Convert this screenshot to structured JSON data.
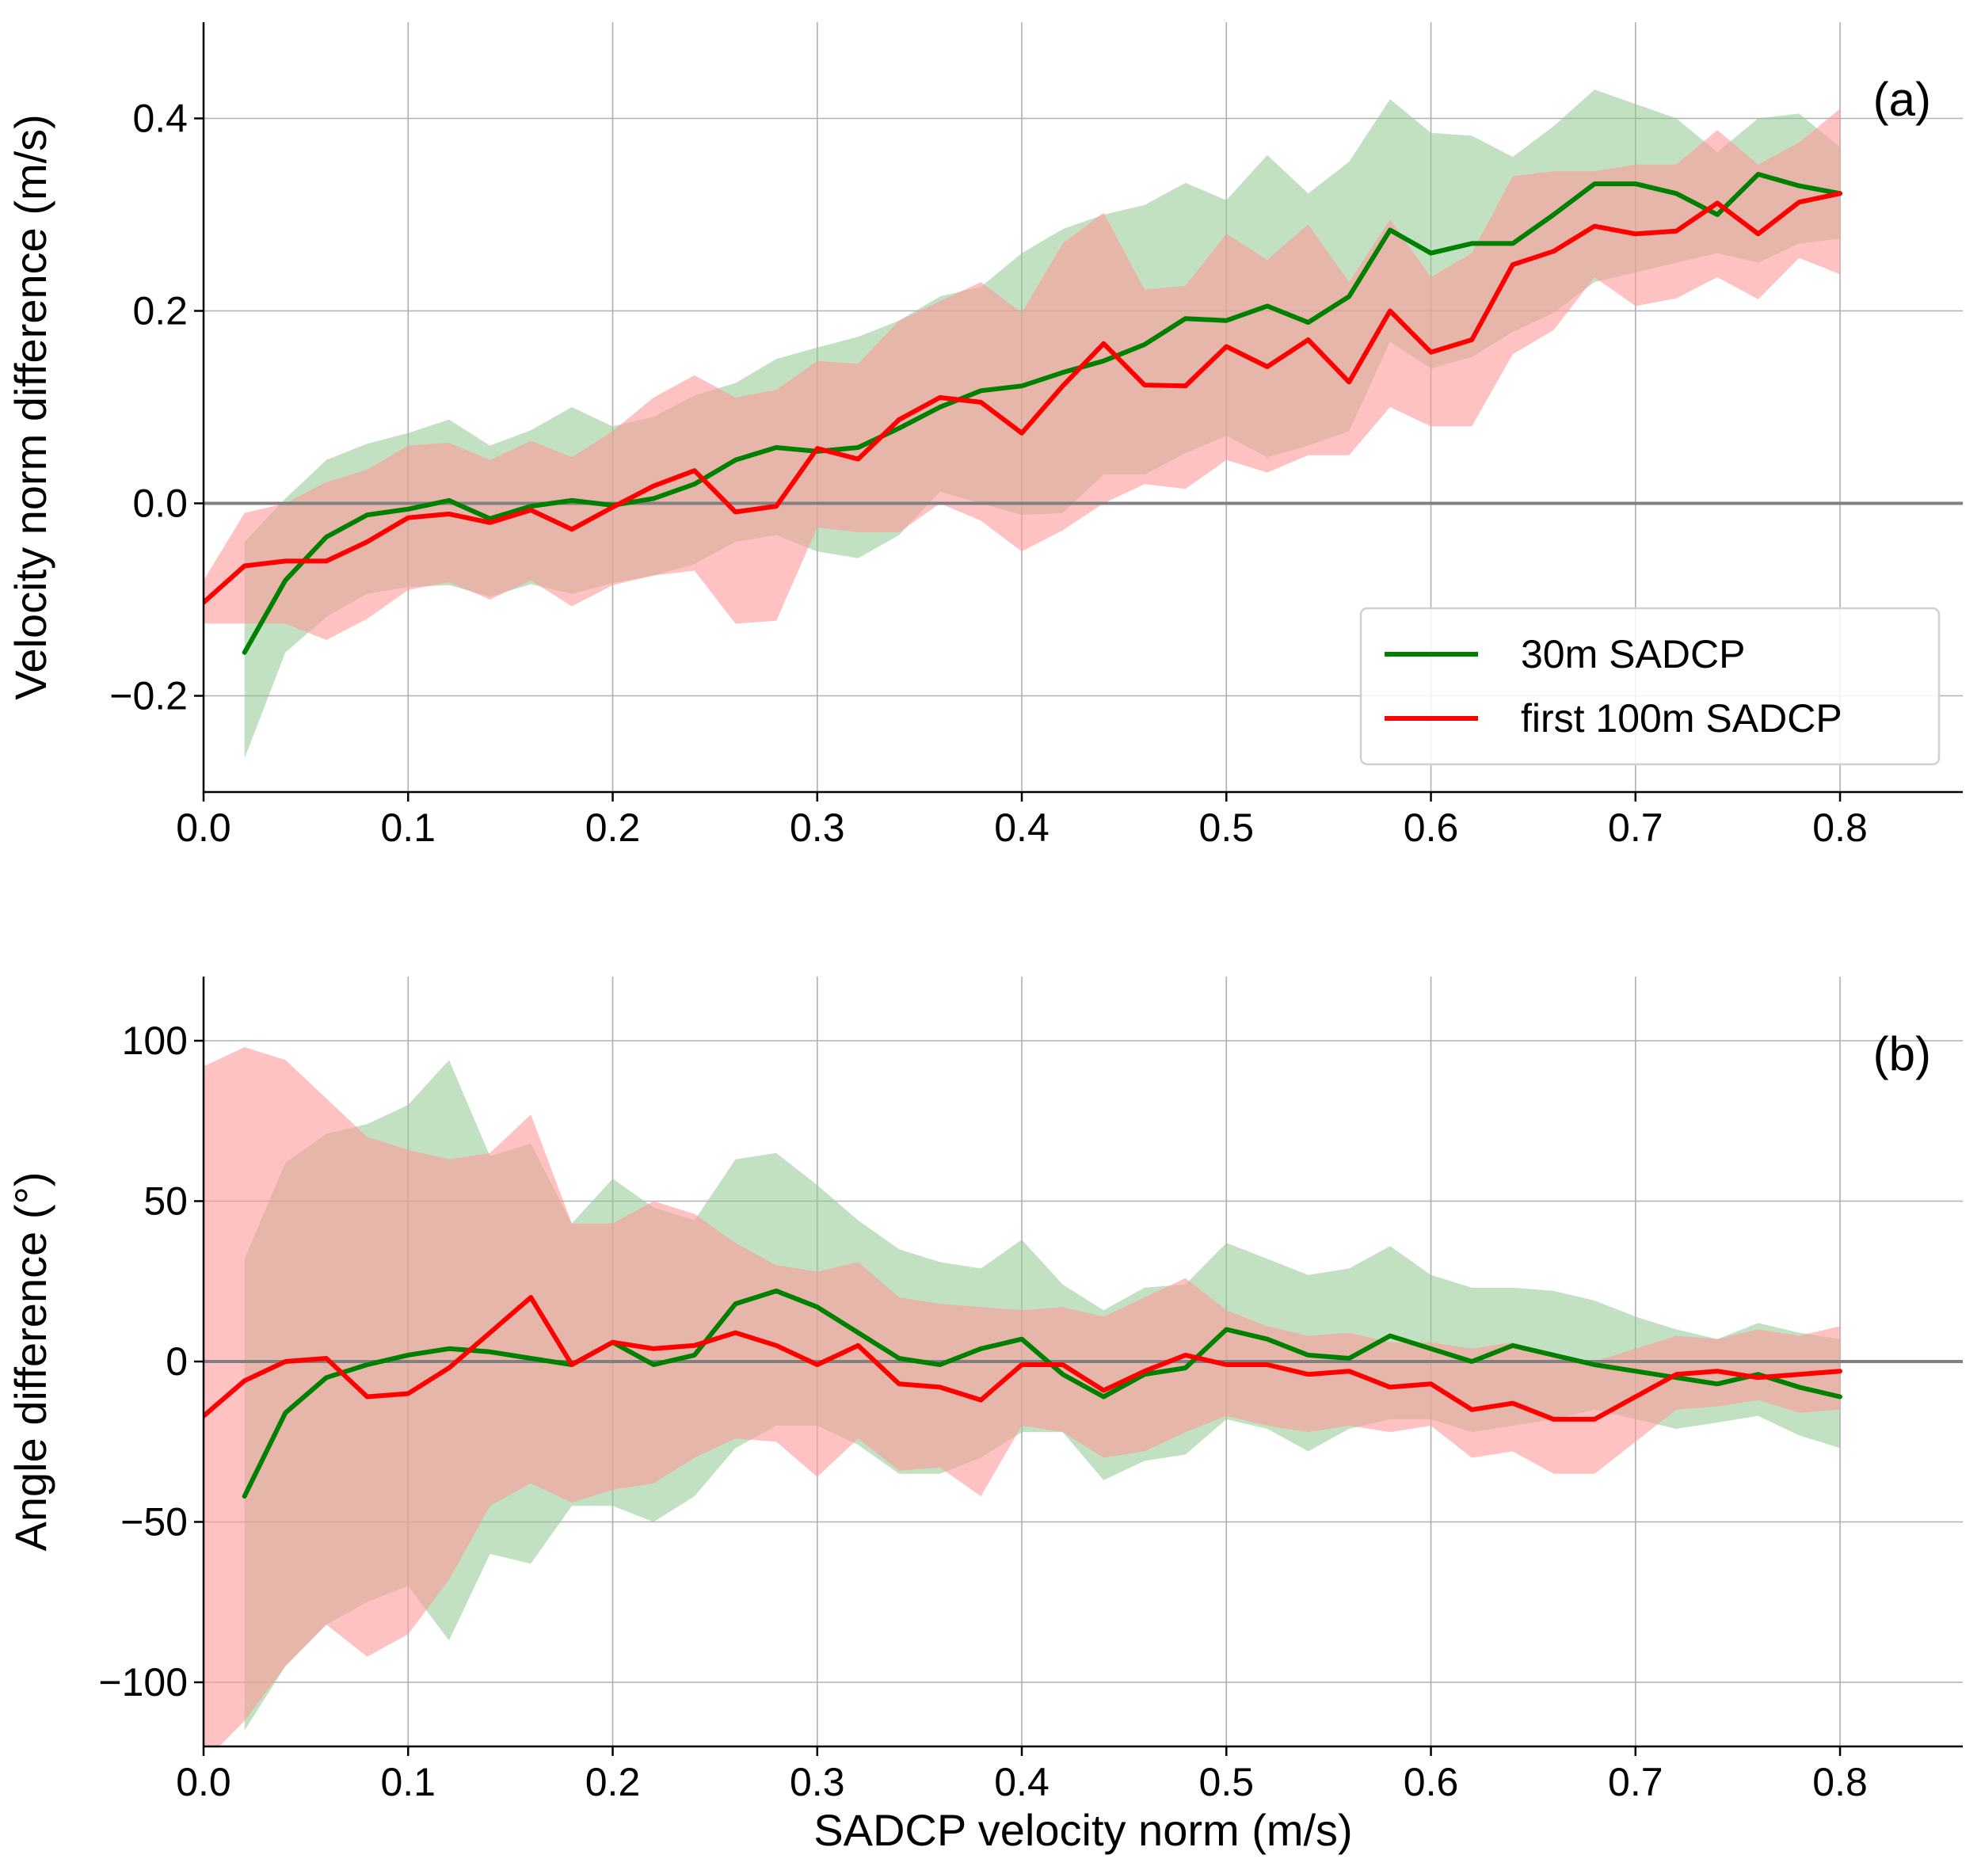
{
  "legend": {
    "series_a": "30m SADCP",
    "series_b": "first 100m SADCP"
  },
  "colors": {
    "series_a_line": "#008000",
    "series_a_band": "#90c990",
    "series_b_line": "#ff0000",
    "series_b_band": "#ff9a9a"
  },
  "chart_data": [
    {
      "type": "line",
      "panel_label": "(a)",
      "xlabel": "",
      "ylabel": "Velocity norm difference (m/s)",
      "xlim": [
        0,
        0.86
      ],
      "ylim": [
        -0.3,
        0.5
      ],
      "xticks": [
        0.0,
        0.1,
        0.2,
        0.3,
        0.4,
        0.5,
        0.6,
        0.7,
        0.8
      ],
      "xtick_labels": [
        "0.0",
        "0.1",
        "0.2",
        "0.3",
        "0.4",
        "0.5",
        "0.6",
        "0.7",
        "0.8"
      ],
      "yticks": [
        -0.2,
        0.0,
        0.2,
        0.4
      ],
      "ytick_labels": [
        "−0.2",
        "0.0",
        "0.2",
        "0.4"
      ],
      "grid": true,
      "reference_line": 0,
      "legend_position": "lower-right",
      "series": [
        {
          "name": "30m SADCP",
          "x": [
            0.02,
            0.04,
            0.06,
            0.08,
            0.1,
            0.12,
            0.14,
            0.16,
            0.18,
            0.2,
            0.22,
            0.24,
            0.26,
            0.28,
            0.3,
            0.32,
            0.34,
            0.36,
            0.38,
            0.4,
            0.42,
            0.44,
            0.46,
            0.48,
            0.5,
            0.52,
            0.54,
            0.56,
            0.58,
            0.6,
            0.62,
            0.64,
            0.66,
            0.68,
            0.7,
            0.72,
            0.74,
            0.76,
            0.78,
            0.8
          ],
          "values": [
            -0.155,
            -0.08,
            -0.035,
            -0.012,
            -0.006,
            0.003,
            -0.016,
            -0.003,
            0.003,
            -0.002,
            0.005,
            0.02,
            0.045,
            0.058,
            0.054,
            0.058,
            0.078,
            0.1,
            0.117,
            0.122,
            0.136,
            0.148,
            0.165,
            0.192,
            0.19,
            0.205,
            0.188,
            0.215,
            0.284,
            0.26,
            0.27,
            0.27,
            0.3,
            0.332,
            0.332,
            0.322,
            0.3,
            0.342,
            0.33,
            0.322
          ],
          "lower": [
            -0.265,
            -0.155,
            -0.118,
            -0.094,
            -0.087,
            -0.085,
            -0.097,
            -0.084,
            -0.094,
            -0.083,
            -0.075,
            -0.063,
            -0.04,
            -0.033,
            -0.05,
            -0.057,
            -0.033,
            0.012,
            0.0,
            -0.012,
            -0.01,
            0.03,
            0.03,
            0.052,
            0.07,
            0.048,
            0.06,
            0.075,
            0.168,
            0.14,
            0.152,
            0.178,
            0.198,
            0.23,
            0.24,
            0.25,
            0.26,
            0.25,
            0.27,
            0.275
          ],
          "upper": [
            -0.04,
            0.005,
            0.045,
            0.062,
            0.073,
            0.087,
            0.06,
            0.076,
            0.1,
            0.08,
            0.09,
            0.112,
            0.125,
            0.15,
            0.162,
            0.173,
            0.19,
            0.215,
            0.225,
            0.26,
            0.285,
            0.3,
            0.31,
            0.333,
            0.315,
            0.362,
            0.322,
            0.355,
            0.42,
            0.385,
            0.382,
            0.36,
            0.392,
            0.43,
            0.415,
            0.4,
            0.365,
            0.4,
            0.405,
            0.37
          ]
        },
        {
          "name": "first 100m SADCP",
          "x": [
            0.0,
            0.02,
            0.04,
            0.06,
            0.08,
            0.1,
            0.12,
            0.14,
            0.16,
            0.18,
            0.2,
            0.22,
            0.24,
            0.26,
            0.28,
            0.3,
            0.32,
            0.34,
            0.36,
            0.38,
            0.4,
            0.42,
            0.44,
            0.46,
            0.48,
            0.5,
            0.52,
            0.54,
            0.56,
            0.58,
            0.6,
            0.62,
            0.64,
            0.66,
            0.68,
            0.7,
            0.72,
            0.74,
            0.76,
            0.78,
            0.8
          ],
          "values": [
            -0.103,
            -0.065,
            -0.06,
            -0.06,
            -0.04,
            -0.015,
            -0.011,
            -0.02,
            -0.007,
            -0.027,
            -0.004,
            0.018,
            0.034,
            -0.009,
            -0.003,
            0.057,
            0.046,
            0.087,
            0.11,
            0.105,
            0.073,
            0.122,
            0.166,
            0.123,
            0.122,
            0.163,
            0.142,
            0.17,
            0.126,
            0.2,
            0.157,
            0.17,
            0.248,
            0.262,
            0.288,
            0.28,
            0.283,
            0.312,
            0.28,
            0.313,
            0.322
          ],
          "lower": [
            -0.125,
            -0.125,
            -0.125,
            -0.142,
            -0.12,
            -0.09,
            -0.082,
            -0.1,
            -0.08,
            -0.107,
            -0.085,
            -0.075,
            -0.07,
            -0.125,
            -0.122,
            -0.025,
            -0.03,
            -0.03,
            0.0,
            -0.018,
            -0.05,
            -0.028,
            0.0,
            0.02,
            0.015,
            0.045,
            0.032,
            0.05,
            0.05,
            0.1,
            0.08,
            0.08,
            0.155,
            0.18,
            0.235,
            0.205,
            0.213,
            0.235,
            0.212,
            0.255,
            0.238
          ],
          "upper": [
            -0.08,
            -0.01,
            0.0,
            0.022,
            0.035,
            0.06,
            0.063,
            0.045,
            0.065,
            0.048,
            0.075,
            0.11,
            0.133,
            0.11,
            0.118,
            0.148,
            0.145,
            0.19,
            0.21,
            0.23,
            0.198,
            0.27,
            0.302,
            0.222,
            0.226,
            0.28,
            0.253,
            0.29,
            0.23,
            0.295,
            0.235,
            0.26,
            0.34,
            0.345,
            0.345,
            0.352,
            0.352,
            0.388,
            0.352,
            0.375,
            0.41
          ]
        }
      ]
    },
    {
      "type": "line",
      "panel_label": "(b)",
      "xlabel": "SADCP velocity norm (m/s)",
      "ylabel": "Angle difference (°)",
      "xlim": [
        0,
        0.86
      ],
      "ylim": [
        -120,
        120
      ],
      "xticks": [
        0.0,
        0.1,
        0.2,
        0.3,
        0.4,
        0.5,
        0.6,
        0.7,
        0.8
      ],
      "xtick_labels": [
        "0.0",
        "0.1",
        "0.2",
        "0.3",
        "0.4",
        "0.5",
        "0.6",
        "0.7",
        "0.8"
      ],
      "yticks": [
        -100,
        -50,
        0,
        50,
        100
      ],
      "ytick_labels": [
        "−100",
        "−50",
        "0",
        "50",
        "100"
      ],
      "grid": true,
      "reference_line": 0,
      "series": [
        {
          "name": "30m SADCP",
          "x": [
            0.02,
            0.04,
            0.06,
            0.08,
            0.1,
            0.12,
            0.14,
            0.16,
            0.18,
            0.2,
            0.22,
            0.24,
            0.26,
            0.28,
            0.3,
            0.32,
            0.34,
            0.36,
            0.38,
            0.4,
            0.42,
            0.44,
            0.46,
            0.48,
            0.5,
            0.52,
            0.54,
            0.56,
            0.58,
            0.6,
            0.62,
            0.64,
            0.66,
            0.68,
            0.7,
            0.72,
            0.74,
            0.76,
            0.78,
            0.8
          ],
          "values": [
            -42,
            -16,
            -5,
            -1,
            2,
            4,
            3,
            1,
            -1,
            6,
            -1,
            2,
            18,
            22,
            17,
            9,
            1,
            -1,
            4,
            7,
            -4,
            -11,
            -4,
            -2,
            10,
            7,
            2,
            1,
            8,
            4,
            0,
            5,
            2,
            -1,
            -3,
            -5,
            -7,
            -4,
            -8,
            -11
          ],
          "lower": [
            -115,
            -95,
            -82,
            -75,
            -70,
            -87,
            -60,
            -63,
            -45,
            -45,
            -50,
            -42,
            -27,
            -20,
            -20,
            -26,
            -35,
            -35,
            -30,
            -22,
            -22,
            -37,
            -31,
            -29,
            -18,
            -21,
            -28,
            -21,
            -18,
            -18,
            -22,
            -20,
            -18,
            -15,
            -18,
            -21,
            -19,
            -17,
            -23,
            -27
          ],
          "upper": [
            32,
            62,
            71,
            74,
            80,
            94,
            64,
            68,
            43,
            57,
            48,
            44,
            63,
            65,
            55,
            44,
            35,
            31,
            29,
            38,
            24,
            16,
            23,
            24,
            37,
            32,
            27,
            29,
            36,
            27,
            23,
            23,
            22,
            19,
            14,
            10,
            7,
            12,
            9,
            7
          ]
        },
        {
          "name": "first 100m SADCP",
          "x": [
            0.0,
            0.02,
            0.04,
            0.06,
            0.08,
            0.1,
            0.12,
            0.14,
            0.16,
            0.18,
            0.2,
            0.22,
            0.24,
            0.26,
            0.28,
            0.3,
            0.32,
            0.34,
            0.36,
            0.38,
            0.4,
            0.42,
            0.44,
            0.46,
            0.48,
            0.5,
            0.52,
            0.54,
            0.56,
            0.58,
            0.6,
            0.62,
            0.64,
            0.66,
            0.68,
            0.7,
            0.72,
            0.74,
            0.76,
            0.78,
            0.8
          ],
          "values": [
            -17,
            -6,
            0,
            1,
            -11,
            -10,
            -2,
            9,
            20,
            -1,
            6,
            4,
            5,
            9,
            5,
            -1,
            5,
            -7,
            -8,
            -12,
            -1,
            -1,
            -9,
            -3,
            2,
            -1,
            -1,
            -4,
            -3,
            -8,
            -7,
            -15,
            -13,
            -18,
            -18,
            -11,
            -4,
            -3,
            -5,
            -4,
            -3
          ],
          "lower": [
            -125,
            -112,
            -95,
            -82,
            -92,
            -85,
            -68,
            -45,
            -38,
            -44,
            -40,
            -38,
            -30,
            -24,
            -25,
            -36,
            -24,
            -34,
            -33,
            -42,
            -20,
            -22,
            -30,
            -28,
            -22,
            -17,
            -20,
            -22,
            -20,
            -22,
            -20,
            -30,
            -28,
            -35,
            -35,
            -25,
            -15,
            -14,
            -12,
            -16,
            -15
          ],
          "upper": [
            92,
            98,
            94,
            82,
            70,
            66,
            63,
            65,
            77,
            43,
            43,
            50,
            46,
            37,
            30,
            28,
            31,
            20,
            18,
            17,
            16,
            17,
            14,
            20,
            26,
            16,
            11,
            8,
            9,
            6,
            6,
            4,
            6,
            2,
            0,
            4,
            8,
            7,
            10,
            8,
            11
          ]
        }
      ]
    }
  ]
}
